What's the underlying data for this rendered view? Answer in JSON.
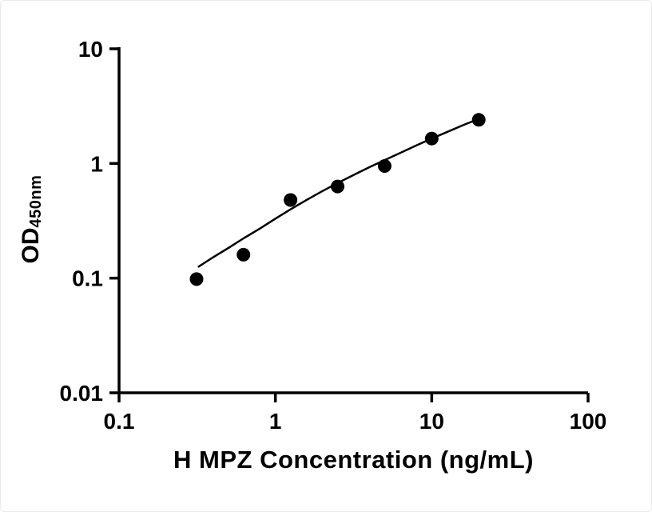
{
  "figure": {
    "background": "#ffffff"
  },
  "chart_data": {
    "type": "scatter",
    "title": "",
    "xlabel": "H MPZ Concentration (ng/mL)",
    "ylabel_main": "OD",
    "ylabel_sub": "450nm",
    "x_scale": "log",
    "y_scale": "log",
    "xlim": [
      0.1,
      100
    ],
    "ylim": [
      0.01,
      10
    ],
    "x_ticks": [
      0.1,
      1,
      10,
      100
    ],
    "x_tick_labels": [
      "0.1",
      "1",
      "10",
      "100"
    ],
    "y_ticks": [
      0.01,
      0.1,
      1,
      10
    ],
    "y_tick_labels": [
      "0.01",
      "0.1",
      "1",
      "10"
    ],
    "grid": false,
    "legend": "none",
    "marker_color": "#000000",
    "line_color": "#000000",
    "axis_color": "#000000",
    "points": [
      {
        "x": 0.313,
        "y": 0.098
      },
      {
        "x": 0.625,
        "y": 0.16
      },
      {
        "x": 1.25,
        "y": 0.48
      },
      {
        "x": 2.5,
        "y": 0.63
      },
      {
        "x": 5,
        "y": 0.95
      },
      {
        "x": 10,
        "y": 1.65
      },
      {
        "x": 20,
        "y": 2.4
      }
    ],
    "fit_curve": [
      {
        "x": 0.32,
        "y": 0.125
      },
      {
        "x": 0.4,
        "y": 0.152
      },
      {
        "x": 0.5,
        "y": 0.183
      },
      {
        "x": 0.625,
        "y": 0.222
      },
      {
        "x": 0.8,
        "y": 0.272
      },
      {
        "x": 1.0,
        "y": 0.33
      },
      {
        "x": 1.25,
        "y": 0.398
      },
      {
        "x": 1.6,
        "y": 0.485
      },
      {
        "x": 2.0,
        "y": 0.575
      },
      {
        "x": 2.5,
        "y": 0.675
      },
      {
        "x": 3.2,
        "y": 0.8
      },
      {
        "x": 4.0,
        "y": 0.93
      },
      {
        "x": 5.0,
        "y": 1.07
      },
      {
        "x": 6.5,
        "y": 1.26
      },
      {
        "x": 8.0,
        "y": 1.44
      },
      {
        "x": 10,
        "y": 1.65
      },
      {
        "x": 13,
        "y": 1.92
      },
      {
        "x": 16,
        "y": 2.17
      },
      {
        "x": 20,
        "y": 2.45
      }
    ]
  }
}
